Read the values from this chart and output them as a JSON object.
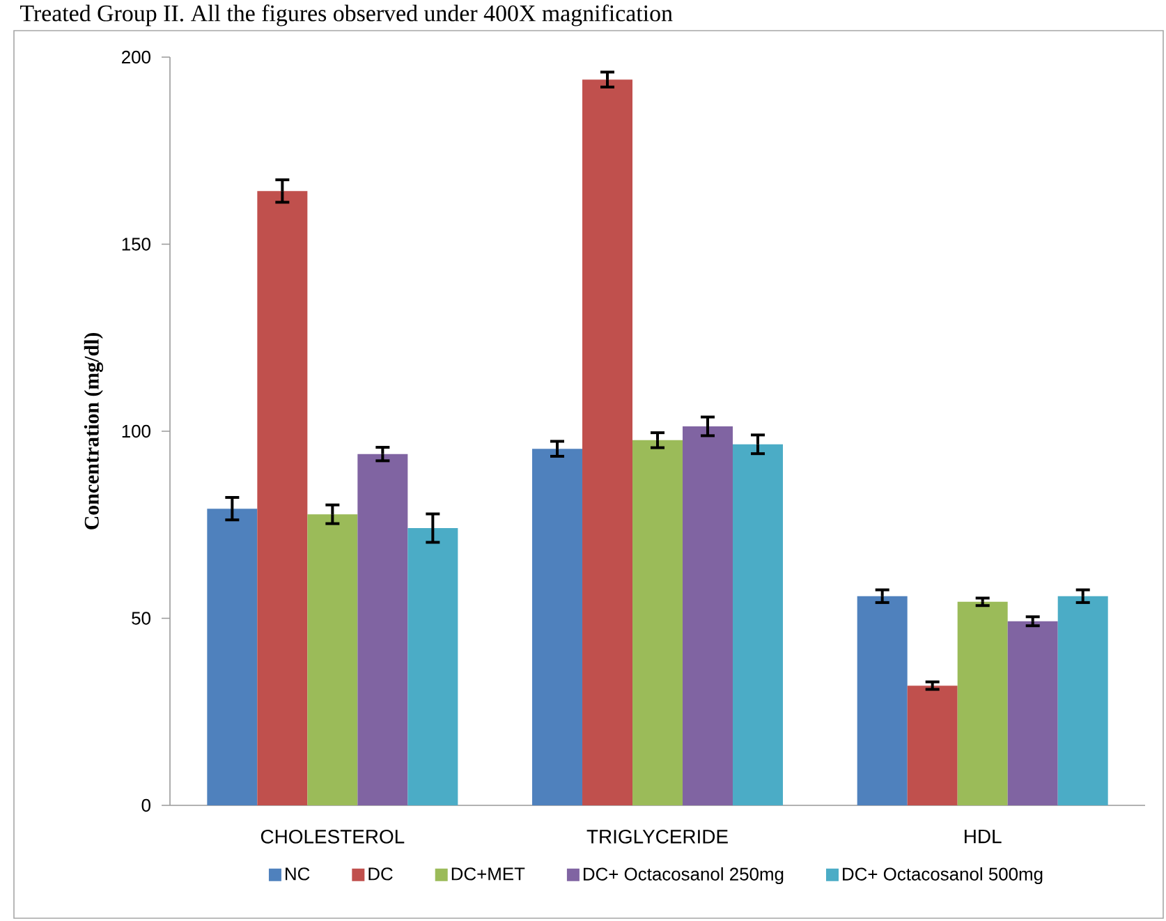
{
  "chart_data": {
    "type": "bar",
    "ylabel": "Concentration (mg/dl)",
    "annotations": [
      "Treated Group II. All the figures observed under 400X magnification"
    ],
    "categories": [
      "CHOLESTEROL",
      "TRIGLYCERIDE",
      "HDL"
    ],
    "series": [
      {
        "name": "NC",
        "color": "#4f81bd",
        "values": [
          79.3,
          95.3,
          55.9
        ],
        "errors": [
          3,
          2,
          1.7
        ]
      },
      {
        "name": "DC",
        "color": "#c0504d",
        "values": [
          164.2,
          194,
          32
        ],
        "errors": [
          3,
          2,
          1
        ]
      },
      {
        "name": "DC+MET",
        "color": "#9bbb59",
        "values": [
          77.8,
          97.6,
          54.4
        ],
        "errors": [
          2.5,
          2,
          1
        ]
      },
      {
        "name": "DC+ Octacosanol 250mg",
        "color": "#8064a2",
        "values": [
          93.9,
          101.3,
          49.2
        ],
        "errors": [
          1.8,
          2.5,
          1.2
        ]
      },
      {
        "name": "DC+ Octacosanol 500mg",
        "color": "#4bacc6",
        "values": [
          74.1,
          96.5,
          55.9
        ],
        "errors": [
          3.8,
          2.5,
          1.7
        ]
      }
    ],
    "ylim": [
      0,
      200
    ],
    "yticks": [
      0,
      50,
      100,
      150,
      200
    ],
    "grid": false,
    "legend": "bottom"
  }
}
